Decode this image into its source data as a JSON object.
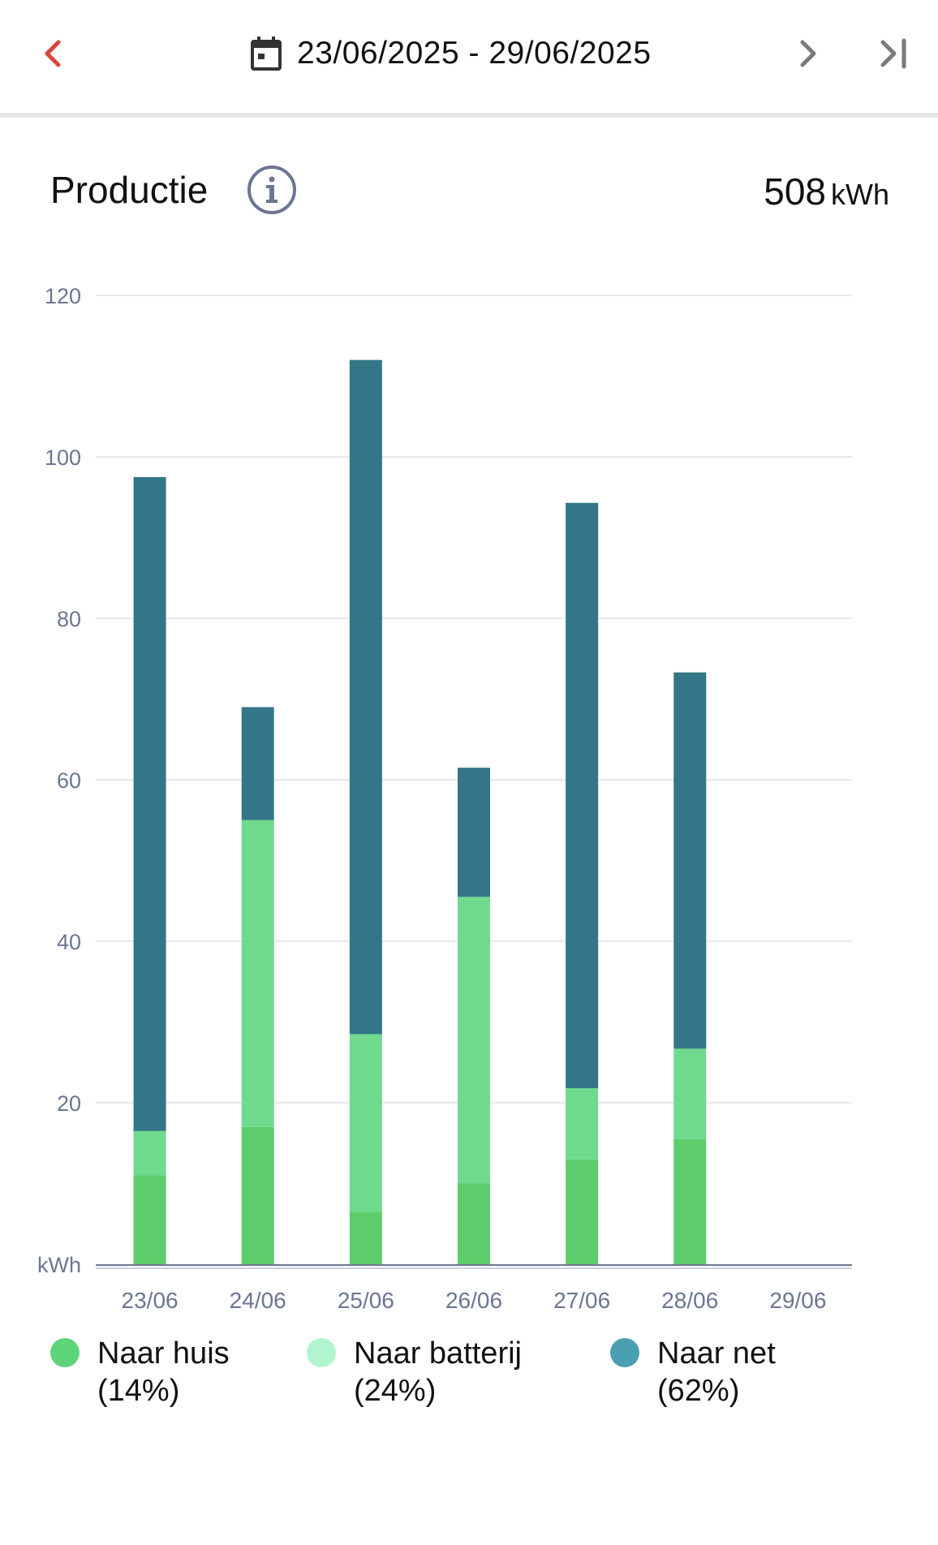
{
  "header": {
    "date_range": "23/06/2025 - 29/06/2025",
    "icons": {
      "prev": "chevron-left-icon",
      "calendar": "calendar-icon",
      "next": "chevron-right-icon",
      "last": "skip-to-end-icon"
    },
    "prev_color": "#d9453b",
    "nav_color": "#7a7a7a"
  },
  "section": {
    "title": "Productie",
    "total_value": "508",
    "total_unit": "kWh"
  },
  "chart_data": {
    "type": "bar",
    "stacked": true,
    "categories": [
      "23/06",
      "24/06",
      "25/06",
      "26/06",
      "27/06",
      "28/06",
      "29/06"
    ],
    "series": [
      {
        "name": "Naar huis",
        "color": "#5ccd6a",
        "values": [
          11,
          17,
          6.5,
          10,
          13,
          15.5,
          0
        ]
      },
      {
        "name": "Naar batterij",
        "color": "#6fda8e",
        "values": [
          5.5,
          38,
          22,
          35.5,
          8.8,
          11.2,
          0
        ]
      },
      {
        "name": "Naar net",
        "color": "#337687",
        "values": [
          81,
          14,
          83.5,
          16,
          72.5,
          46.6,
          0
        ]
      }
    ],
    "ylabel": "kWh",
    "ylim": [
      0,
      120
    ],
    "yticks": [
      20,
      40,
      60,
      80,
      100,
      120
    ],
    "grid": true
  },
  "legend": [
    {
      "name": "Naar huis",
      "pct": "(14%)",
      "color": "#5ed47a"
    },
    {
      "name": "Naar batterij",
      "pct": "(24%)",
      "color": "#b0f5cf"
    },
    {
      "name": "Naar net",
      "pct": "(62%)",
      "color": "#4aa0b2"
    }
  ]
}
